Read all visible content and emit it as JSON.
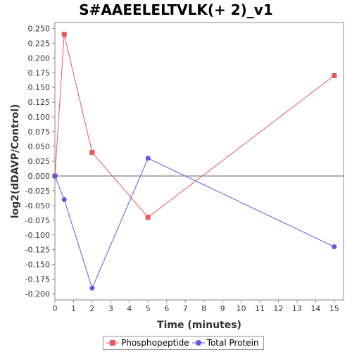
{
  "chart_data": {
    "type": "line",
    "title": "S#AAEELELTVLK(+ 2)_v1",
    "xlabel": "Time (minutes)",
    "ylabel": "log2(dDAVP/Control)",
    "xlim": [
      0,
      15.5
    ],
    "ylim": [
      -0.21,
      0.26
    ],
    "xticks": [
      0,
      1,
      2,
      3,
      4,
      5,
      6,
      7,
      8,
      9,
      10,
      11,
      12,
      13,
      14,
      15
    ],
    "yticks": [
      0.25,
      0.225,
      0.2,
      0.175,
      0.15,
      0.125,
      0.1,
      0.075,
      0.05,
      0.025,
      0.0,
      -0.025,
      -0.05,
      -0.075,
      -0.1,
      -0.125,
      -0.15,
      -0.175,
      -0.2
    ],
    "ytick_labels": [
      "0.250",
      "0.225",
      "0.200",
      "0.175",
      "0.150",
      "0.125",
      "0.100",
      "0.075",
      "0.050",
      "0.025",
      "0.000",
      "-0.025",
      "-0.050",
      "-0.075",
      "-0.100",
      "-0.125",
      "-0.150",
      "-0.175",
      "-0.200"
    ],
    "zero_line": true,
    "grid": false,
    "legend_position": "bottom",
    "series": [
      {
        "name": "Phosphopeptide",
        "color": "#e8585a",
        "marker": "square",
        "x": [
          0,
          0.5,
          2,
          5,
          15
        ],
        "y": [
          0.0,
          0.24,
          0.04,
          -0.07,
          0.17
        ]
      },
      {
        "name": "Total Protein",
        "color": "#5a5ae6",
        "marker": "circle",
        "x": [
          0,
          0.5,
          2,
          5,
          15
        ],
        "y": [
          0.0,
          -0.04,
          -0.19,
          0.03,
          -0.12
        ]
      }
    ]
  }
}
